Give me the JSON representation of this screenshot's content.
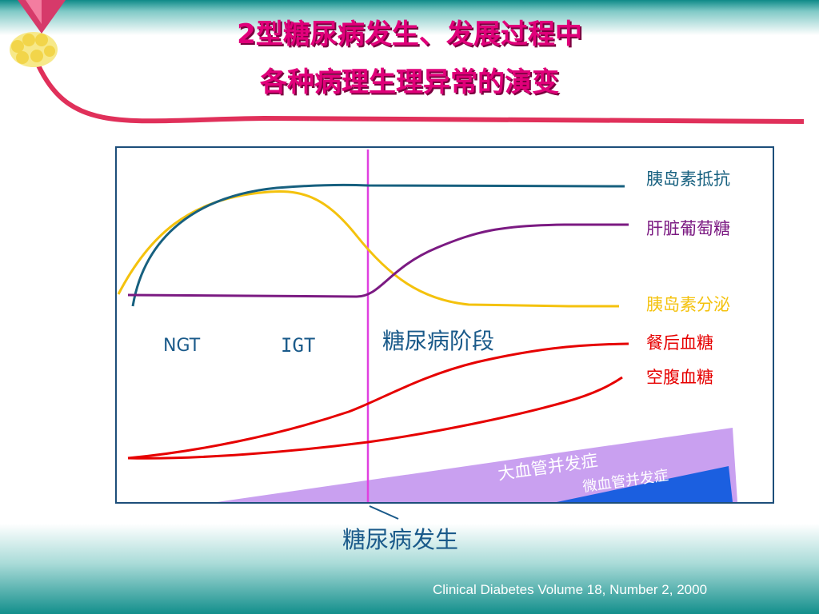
{
  "title": {
    "line1": "2型糖尿病发生、发展过程中",
    "line2": "各种病理生理异常的演变"
  },
  "curves": [
    {
      "label": "胰岛素抵抗",
      "color": "#17607f"
    },
    {
      "label": "肝脏葡萄糖",
      "color": "#7b1a82"
    },
    {
      "label": "胰岛素分泌",
      "color": "#f4c20d"
    },
    {
      "label": "餐后血糖",
      "color": "#e60000"
    },
    {
      "label": "空腹血糖",
      "color": "#e60000"
    }
  ],
  "stages": {
    "ngt": "NGT",
    "igt": "IGT",
    "diabetes": "糖尿病阶段"
  },
  "complications": {
    "macro": "大血管并发症",
    "micro": "微血管并发症"
  },
  "onset_label": "糖尿病发生",
  "citation": "Clinical Diabetes Volume 18, Number 2, 2000",
  "colors": {
    "title": "#e0007a",
    "frame_border": "#1d4e7a",
    "divider": "#e040e0",
    "macro_fill": "#c9a0f0",
    "micro_fill": "#1b5fe0",
    "header_teal": "#0e8a88"
  }
}
